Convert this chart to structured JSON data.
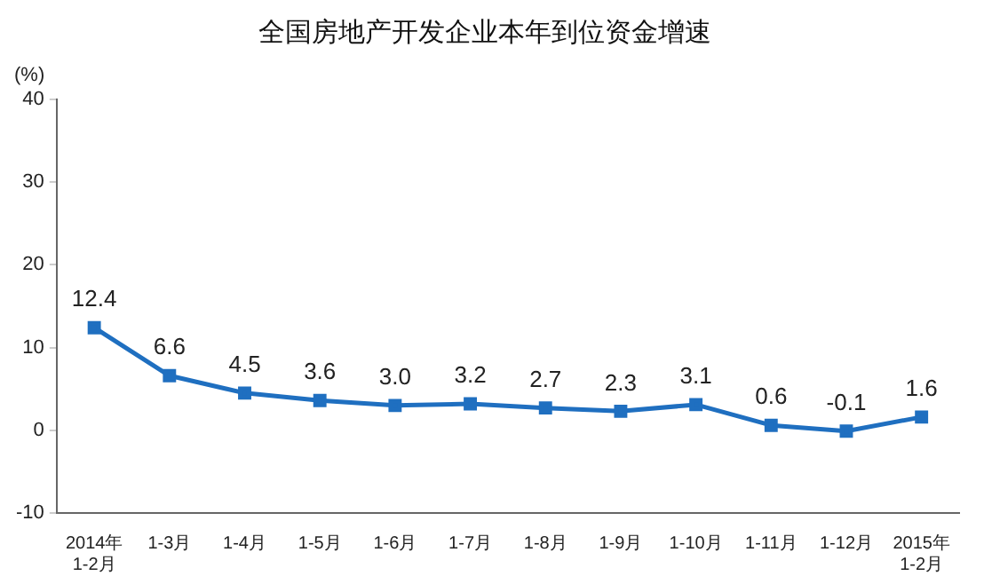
{
  "chart_data": {
    "type": "line",
    "title": "全国房地产开发企业本年到位资金增速",
    "ylabel": "(%)",
    "categories": [
      "2014年\n1-2月",
      "1-3月",
      "1-4月",
      "1-5月",
      "1-6月",
      "1-7月",
      "1-8月",
      "1-9月",
      "1-10月",
      "1-11月",
      "1-12月",
      "2015年\n1-2月"
    ],
    "series": [
      {
        "color": "#1f6fc0",
        "values": [
          12.4,
          6.6,
          4.5,
          3.6,
          3.0,
          3.2,
          2.7,
          2.3,
          3.1,
          0.6,
          -0.1,
          1.6
        ],
        "value_labels": [
          "12.4",
          "6.6",
          "4.5",
          "3.6",
          "3.0",
          "3.2",
          "2.7",
          "2.3",
          "3.1",
          "0.6",
          "-0.1",
          "1.6"
        ]
      }
    ],
    "ylim": [
      -10,
      40
    ],
    "yticks": [
      -10,
      0,
      10,
      20,
      30,
      40
    ],
    "grid": false,
    "legend": false,
    "marker": "square",
    "line_style": "solid"
  }
}
